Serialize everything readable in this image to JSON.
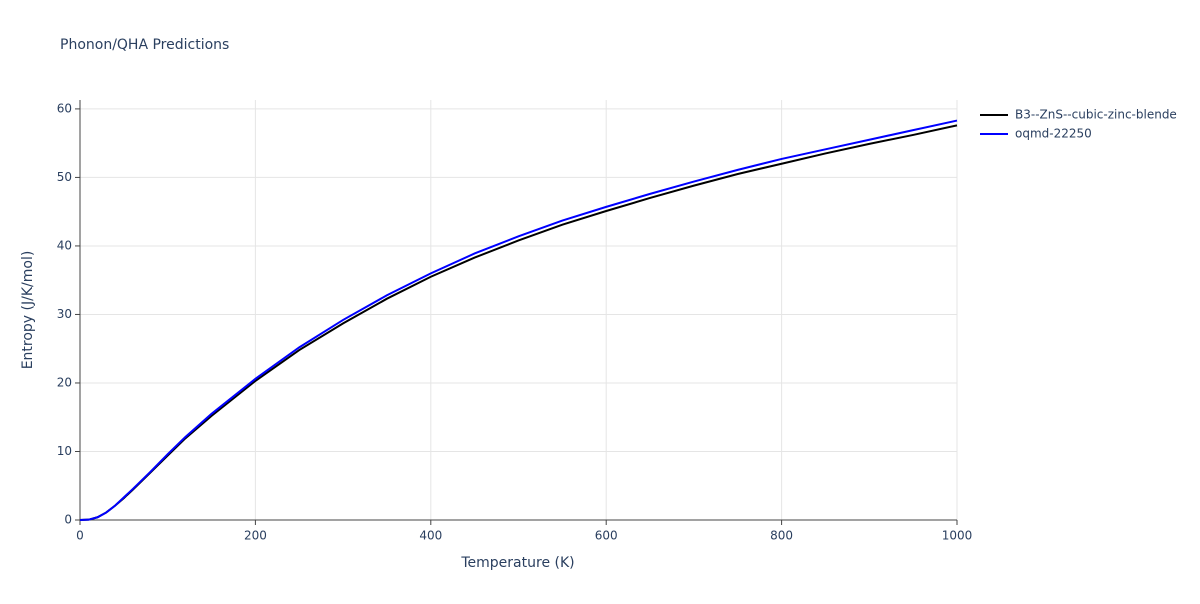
{
  "chart_data": {
    "type": "line",
    "title": "Phonon/QHA Predictions",
    "x_label": "Temperature (K)",
    "y_label": "Entropy (J/K/mol)",
    "x": [
      0,
      10,
      20,
      30,
      40,
      50,
      60,
      80,
      100,
      120,
      150,
      200,
      250,
      300,
      350,
      400,
      450,
      500,
      550,
      600,
      650,
      700,
      750,
      800,
      850,
      900,
      950,
      1000
    ],
    "series": [
      {
        "name": "B3--ZnS--cubic-zinc-blende",
        "color": "#000000",
        "values": [
          0,
          0.05,
          0.4,
          1.1,
          2.1,
          3.2,
          4.4,
          6.9,
          9.4,
          11.9,
          15.2,
          20.3,
          24.8,
          28.7,
          32.3,
          35.5,
          38.3,
          40.8,
          43.1,
          45.1,
          47.0,
          48.8,
          50.5,
          52.0,
          53.5,
          54.9,
          56.2,
          57.6
        ]
      },
      {
        "name": "oqmd-22250",
        "color": "#0000ff",
        "values": [
          0,
          0.05,
          0.4,
          1.1,
          2.1,
          3.3,
          4.5,
          7.0,
          9.6,
          12.1,
          15.5,
          20.6,
          25.2,
          29.2,
          32.8,
          36.0,
          38.9,
          41.4,
          43.7,
          45.7,
          47.6,
          49.4,
          51.1,
          52.7,
          54.1,
          55.5,
          56.9,
          58.3
        ]
      }
    ],
    "xlim": [
      0,
      1000
    ],
    "ylim": [
      0,
      61.3
    ],
    "xticks": [
      0,
      200,
      400,
      600,
      800,
      1000
    ],
    "yticks": [
      0,
      10,
      20,
      30,
      40,
      50,
      60
    ],
    "grid": true,
    "legend": "top-right"
  }
}
